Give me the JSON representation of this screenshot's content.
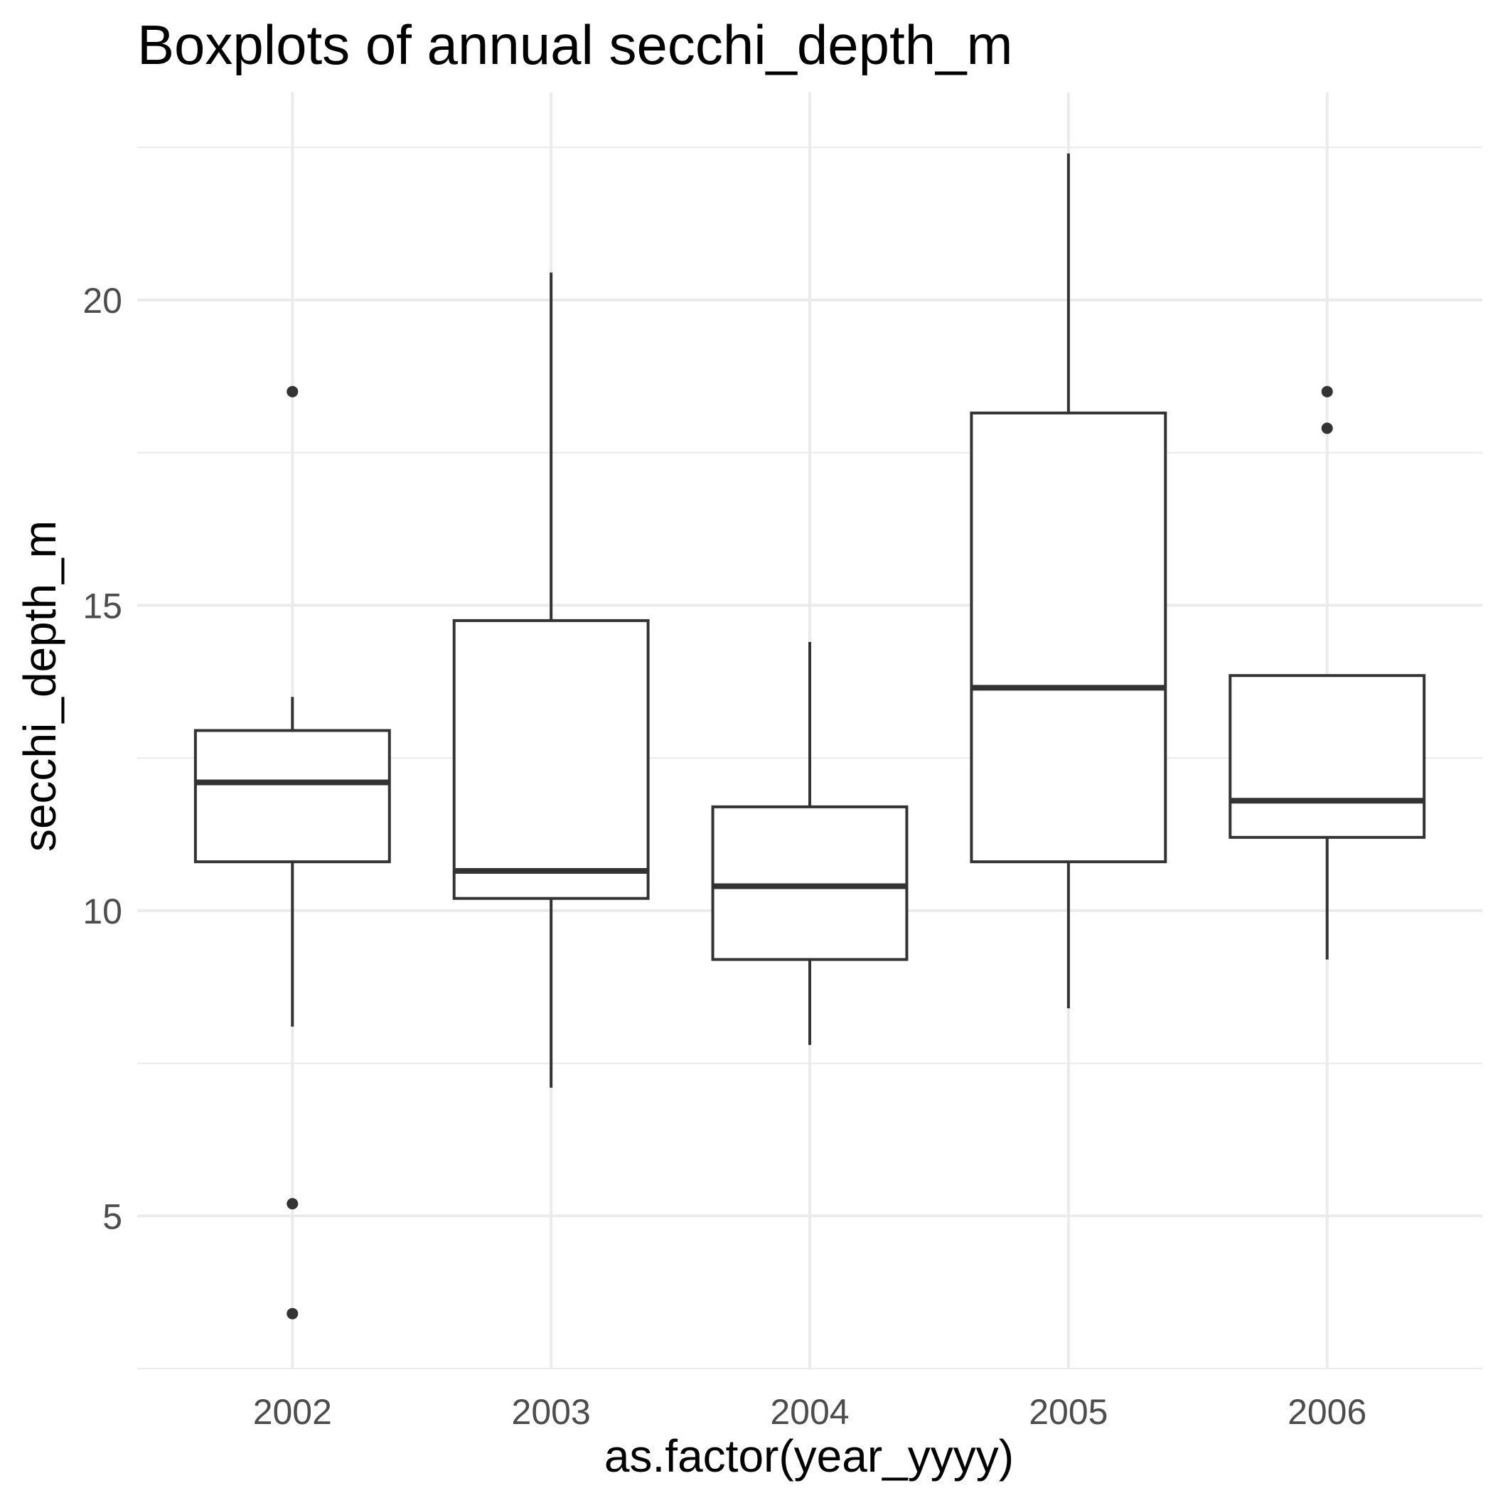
{
  "chart_data": {
    "type": "boxplot",
    "title": "Boxplots of annual secchi_depth_m",
    "xlabel": "as.factor(year_yyyy)",
    "ylabel": "secchi_depth_m",
    "categories": [
      "2002",
      "2003",
      "2004",
      "2005",
      "2006"
    ],
    "ylim": [
      2.5,
      23.4
    ],
    "yticks": [
      5,
      10,
      15,
      20
    ],
    "ytick_labels": [
      "5",
      "10",
      "15",
      "20"
    ],
    "grid": true,
    "boxes": [
      {
        "category": "2002",
        "whisker_low": 8.1,
        "q1": 10.8,
        "median": 12.1,
        "q3": 12.95,
        "whisker_high": 13.5,
        "outliers": [
          3.4,
          5.2,
          18.5
        ]
      },
      {
        "category": "2003",
        "whisker_low": 7.1,
        "q1": 10.2,
        "median": 10.65,
        "q3": 14.75,
        "whisker_high": 20.45,
        "outliers": []
      },
      {
        "category": "2004",
        "whisker_low": 7.8,
        "q1": 9.2,
        "median": 10.4,
        "q3": 11.7,
        "whisker_high": 14.4,
        "outliers": []
      },
      {
        "category": "2005",
        "whisker_low": 8.4,
        "q1": 10.8,
        "median": 13.65,
        "q3": 18.15,
        "whisker_high": 22.4,
        "outliers": []
      },
      {
        "category": "2006",
        "whisker_low": 9.2,
        "q1": 11.2,
        "median": 11.8,
        "q3": 13.85,
        "whisker_high": 13.85,
        "outliers": [
          17.9,
          18.5
        ]
      }
    ],
    "colors": {
      "box_line": "#333333",
      "grid": "#ebebeb",
      "tick_text": "#4d4d4d",
      "background": "#ffffff"
    }
  }
}
